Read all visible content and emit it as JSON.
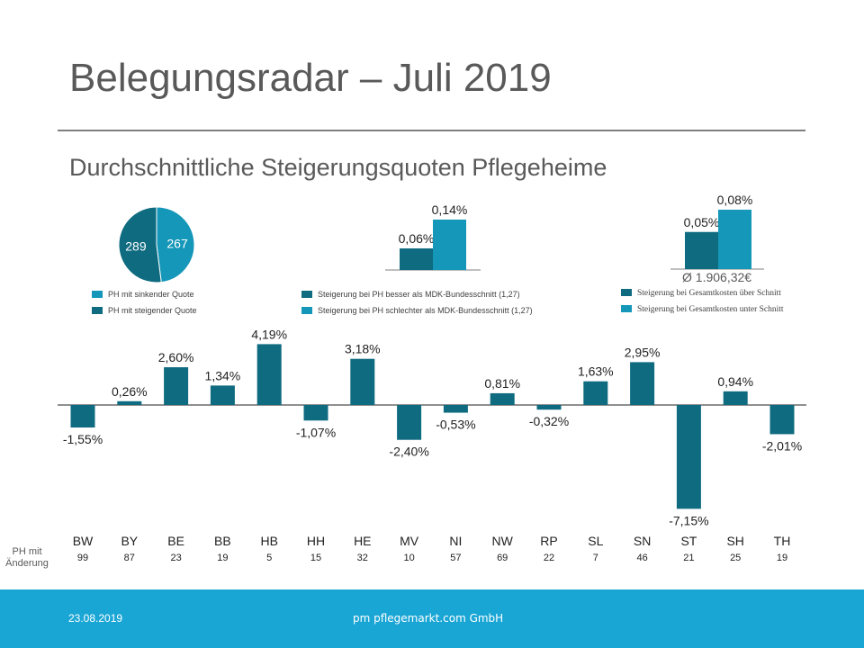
{
  "title": "Belegungsradar – Juli 2019",
  "subtitle": "Durchschnittliche Steigerungsquoten Pflegeheime",
  "colors": {
    "dark": "#0f6b80",
    "light": "#1497b9",
    "footer": "#1aa6d5"
  },
  "legend": {
    "pie_sinkend": "PH  mit sinkender Quote",
    "pie_steigend": "PH  mit steigender Quote",
    "mdk_besser": "Steigerung bei PH  besser als MDK-Bundesschnitt (1,27)",
    "mdk_schlechter": "Steigerung bei PH  schlechter als MDK-Bundesschnitt (1,27)",
    "ges_ueber": "Steigerung bei Gesamtkosten über Schnitt",
    "ges_unter": "Steigerung bei Gesamtkosten unter Schnitt"
  },
  "avg_cost_label": "Ø 1.906,32€",
  "row_label": "PH mit\nÄnderung",
  "chart_data": [
    {
      "type": "pie",
      "slices": [
        {
          "name": "PH mit sinkender Quote",
          "value": 267
        },
        {
          "name": "PH mit steigender Quote",
          "value": 289
        }
      ]
    },
    {
      "type": "bar",
      "categories": [
        "besser als MDK-Bundesschnitt",
        "schlechter als MDK-Bundesschnitt"
      ],
      "values": [
        0.06,
        0.14
      ],
      "labels": [
        "0,06%",
        "0,14%"
      ]
    },
    {
      "type": "bar",
      "categories": [
        "Gesamtkosten über Schnitt",
        "Gesamtkosten unter Schnitt"
      ],
      "values": [
        0.05,
        0.08
      ],
      "labels": [
        "0,05%",
        "0,08%"
      ]
    },
    {
      "type": "bar",
      "categories": [
        "BW",
        "BY",
        "BE",
        "BB",
        "HB",
        "HH",
        "HE",
        "MV",
        "NI",
        "NW",
        "RP",
        "SL",
        "SN",
        "ST",
        "SH",
        "TH"
      ],
      "values": [
        -1.55,
        0.26,
        2.6,
        1.34,
        4.19,
        -1.07,
        3.18,
        -2.4,
        -0.53,
        0.81,
        -0.32,
        1.63,
        2.95,
        -7.15,
        0.94,
        -2.01
      ],
      "labels": [
        "-1,55%",
        "0,26%",
        "2,60%",
        "1,34%",
        "4,19%",
        "-1,07%",
        "3,18%",
        "-2,40%",
        "-0,53%",
        "0,81%",
        "-0,32%",
        "1,63%",
        "2,95%",
        "-7,15%",
        "0,94%",
        "-2,01%"
      ],
      "counts": [
        "99",
        "87",
        "23",
        "19",
        "5",
        "15",
        "32",
        "10",
        "57",
        "69",
        "22",
        "7",
        "46",
        "21",
        "25",
        "19"
      ],
      "ylim": [
        -7.15,
        4.19
      ]
    }
  ],
  "footer": {
    "date": "23.08.2019",
    "company": "pm pflegemarkt.com GmbH"
  }
}
